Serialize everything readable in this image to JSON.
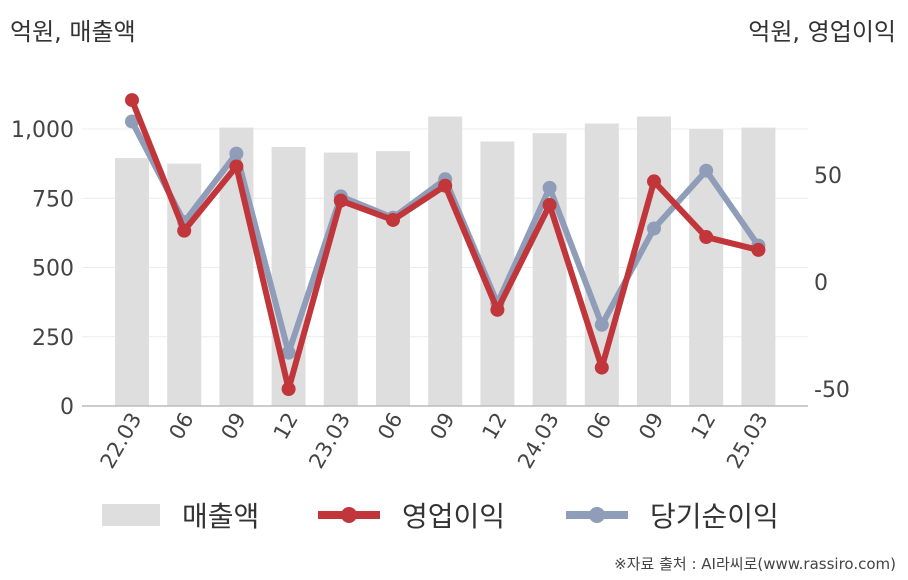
{
  "units": {
    "left": "억원, 매출액",
    "right": "억원, 영업이익"
  },
  "legend": {
    "revenue": "매출액",
    "operating_profit": "영업이익",
    "net_income": "당기순이익"
  },
  "source": "※자료 출처 : AI라씨로(www.rassiro.com)",
  "colors": {
    "revenue": "#dedede",
    "operating_profit": "#c0363a",
    "net_income": "#8f9db8"
  },
  "chart_data": {
    "type": "bar+line",
    "categories": [
      "22.03",
      "06",
      "09",
      "12",
      "23.03",
      "06",
      "09",
      "12",
      "24.03",
      "06",
      "09",
      "12",
      "25.03"
    ],
    "y_left": {
      "ticks": [
        "0",
        "250",
        "500",
        "750",
        "1,000"
      ],
      "range": [
        0,
        1250
      ]
    },
    "y_right": {
      "ticks": [
        "-50",
        "0",
        "50"
      ],
      "range": [
        -60,
        100
      ]
    },
    "grid": true,
    "legend_position": "bottom",
    "series": [
      {
        "name": "매출액",
        "type": "bar",
        "axis": "left",
        "values": [
          895,
          875,
          1005,
          935,
          915,
          920,
          1045,
          955,
          985,
          1020,
          1045,
          1000,
          1005
        ]
      },
      {
        "name": "영업이익",
        "type": "line",
        "axis": "right",
        "values": [
          85,
          24,
          54,
          -50,
          38,
          29,
          45,
          -13,
          36,
          -40,
          47,
          21,
          15
        ]
      },
      {
        "name": "당기순이익",
        "type": "line",
        "axis": "right",
        "values": [
          75,
          28,
          60,
          -33,
          40,
          30,
          48,
          -10,
          44,
          -20,
          25,
          52,
          17
        ]
      }
    ]
  }
}
